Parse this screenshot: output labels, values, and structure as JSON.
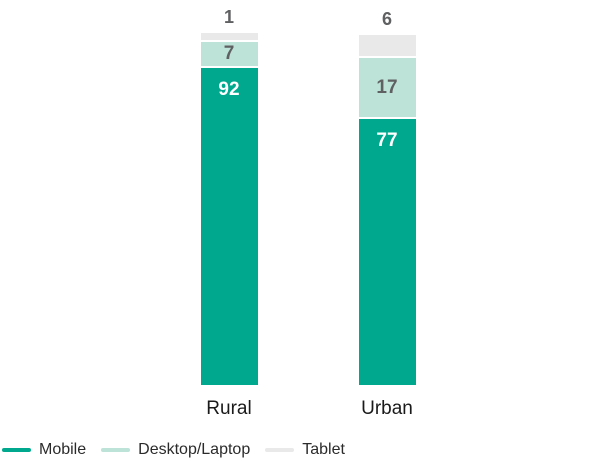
{
  "chart_data": {
    "type": "bar",
    "variant": "stacked-vertical",
    "title": "",
    "categories": [
      "Rural",
      "Urban"
    ],
    "series": [
      {
        "name": "Mobile",
        "values": [
          92,
          77
        ],
        "color": "#00a88e"
      },
      {
        "name": "Desktop/Laptop",
        "values": [
          7,
          17
        ],
        "color": "#bde2d8"
      },
      {
        "name": "Tablet",
        "values": [
          1,
          6
        ],
        "color": "#e9e9e9"
      }
    ],
    "bars": [
      {
        "category": "Rural",
        "values": {
          "mobile": 92,
          "desktop": 7,
          "tablet": 1
        }
      },
      {
        "category": "Urban",
        "values": {
          "mobile": 77,
          "desktop": 17,
          "tablet": 6
        }
      }
    ],
    "total_per_bar": 100,
    "ylim": [
      0,
      100
    ],
    "grid": false,
    "axes_visible": false,
    "legend_position": "bottom-left",
    "legend": [
      {
        "label": "Mobile",
        "color": "#00a88e"
      },
      {
        "label": "Desktop/Laptop",
        "color": "#bde2d8"
      },
      {
        "label": "Tablet",
        "color": "#e9e9e9"
      }
    ]
  },
  "colors": {
    "background": "#ffffff",
    "mobile_value_label": "#ffffff",
    "secondary_value_label": "#5f6062",
    "category_label": "#1a1a1a",
    "legend_text": "#2b2b2b"
  }
}
